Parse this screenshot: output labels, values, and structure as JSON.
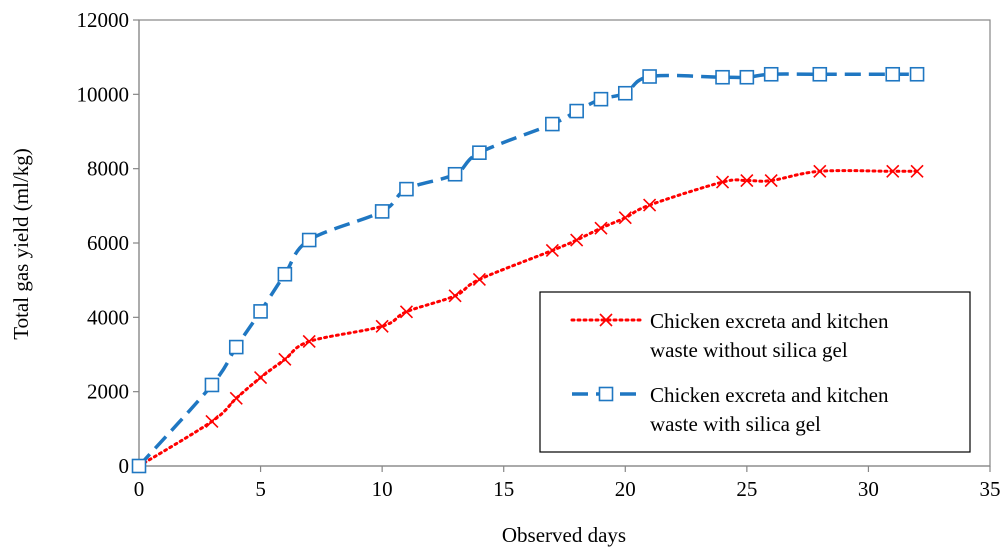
{
  "chart_data": {
    "type": "line",
    "title": "",
    "xlabel": "Observed days",
    "ylabel": "Total gas yield (ml/kg)",
    "xlim": [
      0,
      35
    ],
    "ylim": [
      0,
      12000
    ],
    "xticks": [
      0,
      5,
      10,
      15,
      20,
      25,
      30,
      35
    ],
    "yticks": [
      0,
      2000,
      4000,
      6000,
      8000,
      10000,
      12000
    ],
    "xtick_labels": [
      "0",
      "5",
      "10",
      "15",
      "20",
      "25",
      "30",
      "35"
    ],
    "ytick_labels": [
      "0",
      "2000",
      "4000",
      "6000",
      "8000",
      "10000",
      "12000"
    ],
    "grid": false,
    "legend_position": "bottom-right",
    "series": [
      {
        "name_lines": [
          "Chicken excreta and kitchen",
          "waste without silica gel"
        ],
        "color": "#FF0000",
        "line_style": "dotted",
        "marker": "x",
        "x": [
          0,
          3,
          4,
          5,
          6,
          7,
          10,
          11,
          13,
          14,
          17,
          18,
          19,
          20,
          21,
          24,
          25,
          26,
          28,
          31,
          32
        ],
        "y": [
          0,
          1200,
          1820,
          2380,
          2870,
          3350,
          3760,
          4150,
          4580,
          5020,
          5800,
          6080,
          6400,
          6680,
          7020,
          7640,
          7680,
          7680,
          7930,
          7930,
          7930
        ]
      },
      {
        "name_lines": [
          "Chicken excreta and kitchen",
          "waste with silica gel"
        ],
        "color": "#1F77C2",
        "line_style": "dashed",
        "marker": "square",
        "x": [
          0,
          3,
          4,
          5,
          6,
          7,
          10,
          11,
          13,
          14,
          17,
          18,
          19,
          20,
          21,
          24,
          25,
          26,
          28,
          31,
          32
        ],
        "y": [
          0,
          2180,
          3200,
          4160,
          5160,
          6080,
          6850,
          7450,
          7850,
          8430,
          9200,
          9550,
          9870,
          10030,
          10480,
          10460,
          10460,
          10540,
          10540,
          10540,
          10540
        ]
      }
    ]
  }
}
